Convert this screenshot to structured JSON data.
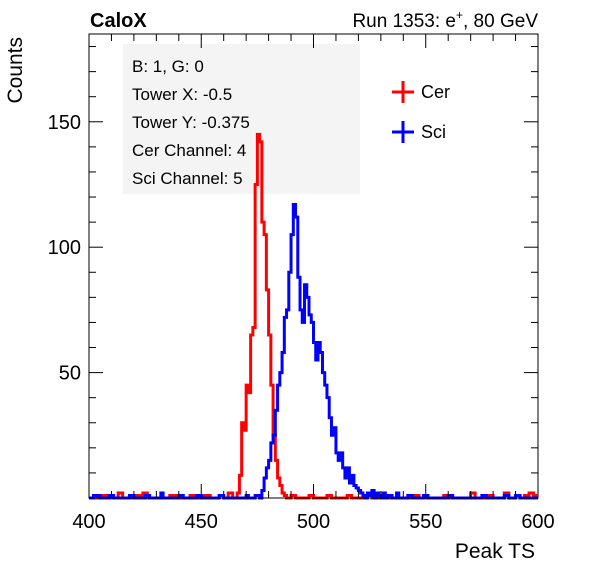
{
  "header": {
    "experiment": "CaloX",
    "run_info_prefix": "Run 1353: e",
    "run_info_sup": "+",
    "run_info_suffix": ", 80 GeV"
  },
  "info_box": {
    "lines": [
      "B: 1, G: 0",
      "Tower X: -0.5",
      "Tower Y: -0.375",
      "Cer Channel: 4",
      "Sci Channel: 5"
    ]
  },
  "chart_data": {
    "type": "line",
    "title": "",
    "xlabel": "Peak TS",
    "ylabel": "Counts",
    "xlim": [
      400,
      600
    ],
    "ylim": [
      0,
      185
    ],
    "x_ticks": [
      400,
      450,
      500,
      550,
      600
    ],
    "y_ticks": [
      50,
      100,
      150
    ],
    "grid": false,
    "legend_position": "top-right",
    "step": 1,
    "series": [
      {
        "name": "Cer",
        "color": "#ff0000",
        "points": [
          [
            400,
            0
          ],
          [
            404,
            1
          ],
          [
            408,
            0
          ],
          [
            413,
            2
          ],
          [
            415,
            0
          ],
          [
            420,
            1
          ],
          [
            424,
            2
          ],
          [
            426,
            0
          ],
          [
            430,
            0
          ],
          [
            436,
            1
          ],
          [
            440,
            0
          ],
          [
            445,
            1
          ],
          [
            448,
            0
          ],
          [
            451,
            1
          ],
          [
            454,
            0
          ],
          [
            458,
            1
          ],
          [
            460,
            0
          ],
          [
            462,
            2
          ],
          [
            464,
            0
          ],
          [
            466,
            2
          ],
          [
            467,
            9
          ],
          [
            468,
            30
          ],
          [
            469,
            27
          ],
          [
            470,
            45
          ],
          [
            471,
            42
          ],
          [
            472,
            65
          ],
          [
            473,
            68
          ],
          [
            474,
            125
          ],
          [
            475,
            145
          ],
          [
            476,
            142
          ],
          [
            477,
            110
          ],
          [
            478,
            105
          ],
          [
            479,
            83
          ],
          [
            480,
            65
          ],
          [
            481,
            45
          ],
          [
            482,
            25
          ],
          [
            483,
            15
          ],
          [
            484,
            8
          ],
          [
            485,
            5
          ],
          [
            486,
            2
          ],
          [
            487,
            1
          ],
          [
            488,
            0
          ],
          [
            490,
            1
          ],
          [
            492,
            0
          ],
          [
            498,
            1
          ],
          [
            500,
            0
          ],
          [
            506,
            1
          ],
          [
            508,
            0
          ],
          [
            515,
            1
          ],
          [
            517,
            0
          ],
          [
            524,
            1
          ],
          [
            526,
            0
          ],
          [
            535,
            0
          ],
          [
            545,
            1
          ],
          [
            547,
            0
          ],
          [
            558,
            1
          ],
          [
            560,
            0
          ],
          [
            570,
            2
          ],
          [
            572,
            0
          ],
          [
            578,
            1
          ],
          [
            580,
            0
          ],
          [
            585,
            2
          ],
          [
            587,
            0
          ],
          [
            590,
            1
          ],
          [
            592,
            0
          ],
          [
            594,
            1
          ],
          [
            596,
            2
          ],
          [
            598,
            1
          ],
          [
            599,
            0
          ]
        ]
      },
      {
        "name": "Sci",
        "color": "#0000ff",
        "points": [
          [
            400,
            0
          ],
          [
            402,
            1
          ],
          [
            405,
            0
          ],
          [
            409,
            1
          ],
          [
            411,
            0
          ],
          [
            418,
            1
          ],
          [
            420,
            0
          ],
          [
            425,
            1
          ],
          [
            427,
            0
          ],
          [
            432,
            2
          ],
          [
            433,
            0
          ],
          [
            440,
            1
          ],
          [
            442,
            0
          ],
          [
            448,
            1
          ],
          [
            450,
            0
          ],
          [
            454,
            0
          ],
          [
            458,
            1
          ],
          [
            460,
            0
          ],
          [
            470,
            1
          ],
          [
            471,
            0
          ],
          [
            474,
            1
          ],
          [
            476,
            0
          ],
          [
            477,
            3
          ],
          [
            478,
            8
          ],
          [
            479,
            12
          ],
          [
            480,
            15
          ],
          [
            481,
            22
          ],
          [
            482,
            25
          ],
          [
            483,
            35
          ],
          [
            484,
            45
          ],
          [
            485,
            50
          ],
          [
            486,
            58
          ],
          [
            487,
            72
          ],
          [
            488,
            75
          ],
          [
            489,
            90
          ],
          [
            490,
            105
          ],
          [
            491,
            117
          ],
          [
            492,
            112
          ],
          [
            493,
            88
          ],
          [
            494,
            75
          ],
          [
            495,
            70
          ],
          [
            496,
            85
          ],
          [
            497,
            80
          ],
          [
            498,
            73
          ],
          [
            499,
            70
          ],
          [
            500,
            62
          ],
          [
            501,
            55
          ],
          [
            502,
            62
          ],
          [
            503,
            58
          ],
          [
            504,
            50
          ],
          [
            505,
            45
          ],
          [
            506,
            40
          ],
          [
            507,
            32
          ],
          [
            508,
            25
          ],
          [
            509,
            28
          ],
          [
            510,
            18
          ],
          [
            511,
            15
          ],
          [
            512,
            18
          ],
          [
            513,
            12
          ],
          [
            514,
            8
          ],
          [
            515,
            12
          ],
          [
            516,
            6
          ],
          [
            517,
            9
          ],
          [
            518,
            5
          ],
          [
            519,
            4
          ],
          [
            520,
            3
          ],
          [
            521,
            2
          ],
          [
            522,
            1
          ],
          [
            523,
            0
          ],
          [
            524,
            2
          ],
          [
            525,
            1
          ],
          [
            526,
            3
          ],
          [
            527,
            0
          ],
          [
            528,
            2
          ],
          [
            529,
            1
          ],
          [
            530,
            0
          ],
          [
            531,
            2
          ],
          [
            532,
            0
          ],
          [
            533,
            1
          ],
          [
            535,
            0
          ],
          [
            537,
            2
          ],
          [
            538,
            0
          ],
          [
            542,
            1
          ],
          [
            544,
            0
          ],
          [
            549,
            1
          ],
          [
            551,
            0
          ],
          [
            560,
            1
          ],
          [
            562,
            0
          ],
          [
            575,
            1
          ],
          [
            577,
            0
          ],
          [
            585,
            1
          ],
          [
            587,
            0
          ],
          [
            590,
            1
          ],
          [
            592,
            0
          ]
        ]
      }
    ]
  }
}
